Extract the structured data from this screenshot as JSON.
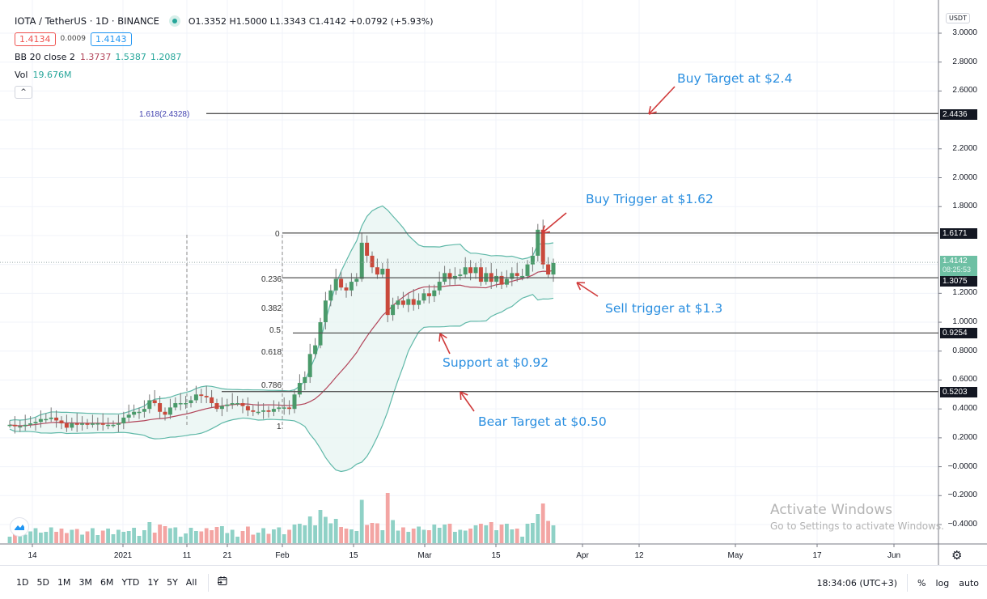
{
  "header": {
    "symbol_title": "IOTA / TetherUS · 1D · BINANCE",
    "ohlc": "O1.3352  H1.5000  L1.3343  C1.4142  +0.0792 (+5.93%)",
    "bid": "1.4134",
    "spread": "0.0009",
    "ask": "1.4143",
    "bb_label": "BB 20 close 2",
    "bb_basis": "1.3737",
    "bb_upper": "1.5387",
    "bb_lower": "1.2087",
    "vol_label": "Vol",
    "vol_value": "19.676M",
    "collapse_icon": "^"
  },
  "price_axis": {
    "currency": "USDT",
    "ticks": [
      "3.0000",
      "2.8000",
      "2.6000",
      "2.2000",
      "2.0000",
      "1.8000",
      "1.2000",
      "1.0000",
      "0.8000",
      "0.6000",
      "0.4000",
      "0.2000",
      "−0.0000",
      "−0.2000",
      "−0.4000"
    ],
    "tags": [
      {
        "label": "2.4436",
        "value": 2.4436
      },
      {
        "label": "1.6171",
        "value": 1.6171
      },
      {
        "label": "1.3075",
        "value": 1.3075
      },
      {
        "label": "0.9254",
        "value": 0.9254
      },
      {
        "label": "0.5203",
        "value": 0.5203
      }
    ],
    "last_price": "1.4142",
    "countdown": "08:25:53"
  },
  "time_axis": {
    "ticks": [
      "14",
      "2021",
      "11",
      "21",
      "Feb",
      "15",
      "Mar",
      "15",
      "Apr",
      "12",
      "May",
      "17",
      "Jun"
    ]
  },
  "fib_levels": [
    {
      "label": "1.618(2.4328)"
    },
    {
      "label": "0"
    },
    {
      "label": "0.236"
    },
    {
      "label": "0.382"
    },
    {
      "label": "0.5"
    },
    {
      "label": "0.618"
    },
    {
      "label": "0.786"
    },
    {
      "label": "1"
    }
  ],
  "annotations": {
    "buy_target": "Buy Target at $2.4",
    "buy_trigger": "Buy Trigger at $1.62",
    "sell_trigger": "Sell trigger at $1.3",
    "support": "Support at $0.92",
    "bear_target": "Bear Target at $0.50"
  },
  "watermark": {
    "line1": "Activate Windows",
    "line2": "Go to Settings to activate Windows."
  },
  "bottom_bar": {
    "ranges": [
      "1D",
      "5D",
      "1M",
      "3M",
      "6M",
      "YTD",
      "1Y",
      "5Y",
      "All"
    ],
    "clock": "18:34:06 (UTC+3)",
    "percent": "%",
    "log": "log",
    "auto": "auto"
  },
  "colors": {
    "up": "#26a69a",
    "down": "#ef5350",
    "bb_band": "#5fb8a8",
    "bb_basis": "#b2455a",
    "annotation": "#2b8fe0",
    "arrow": "#d03a3a"
  },
  "chart_data": {
    "type": "candlestick",
    "title": "IOTA / TetherUS · 1D · BINANCE",
    "xlabel": "",
    "ylabel": "USDT",
    "ylim": [
      -0.5,
      3.05
    ],
    "grid": true,
    "x_ticks": [
      "14",
      "2021",
      "11",
      "21",
      "Feb",
      "15",
      "Mar",
      "15",
      "Apr",
      "12",
      "May",
      "17",
      "Jun"
    ],
    "y_ticks": [
      3.0,
      2.8,
      2.6,
      2.4,
      2.2,
      2.0,
      1.8,
      1.6,
      1.4,
      1.2,
      1.0,
      0.8,
      0.6,
      0.4,
      0.2,
      0.0,
      -0.2,
      -0.4
    ],
    "last": {
      "open": 1.3352,
      "high": 1.5,
      "low": 1.3343,
      "close": 1.4142,
      "change": 0.0792,
      "change_pct": 5.93
    },
    "indicators": {
      "bollinger": {
        "length": 20,
        "source": "close",
        "mult": 2,
        "basis": 1.3737,
        "upper": 1.5387,
        "lower": 1.2087
      },
      "volume": {
        "last": "19.676M"
      }
    },
    "horizontal_levels": [
      {
        "name": "Fib 1.618 / Buy Target",
        "value": 2.4436
      },
      {
        "name": "Fib 0 / Buy Trigger",
        "value": 1.6171
      },
      {
        "name": "Fib 0.236 / Sell trigger",
        "value": 1.3075
      },
      {
        "name": "Fib 0.5 / Support",
        "value": 0.9254
      },
      {
        "name": "Fib 0.786 / Bear Target",
        "value": 0.5203
      }
    ],
    "close_series_approx": [
      0.29,
      0.28,
      0.28,
      0.29,
      0.3,
      0.31,
      0.33,
      0.33,
      0.34,
      0.32,
      0.3,
      0.27,
      0.3,
      0.29,
      0.3,
      0.29,
      0.3,
      0.3,
      0.29,
      0.29,
      0.29,
      0.3,
      0.34,
      0.36,
      0.38,
      0.38,
      0.4,
      0.46,
      0.44,
      0.38,
      0.36,
      0.41,
      0.44,
      0.44,
      0.44,
      0.46,
      0.5,
      0.49,
      0.48,
      0.44,
      0.4,
      0.42,
      0.43,
      0.44,
      0.44,
      0.42,
      0.39,
      0.38,
      0.38,
      0.39,
      0.38,
      0.4,
      0.41,
      0.41,
      0.4,
      0.5,
      0.58,
      0.62,
      0.78,
      0.84,
      1.0,
      1.15,
      1.22,
      1.3,
      1.24,
      1.22,
      1.28,
      1.3,
      1.55,
      1.46,
      1.38,
      1.33,
      1.37,
      1.05,
      1.12,
      1.15,
      1.12,
      1.16,
      1.12,
      1.15,
      1.2,
      1.18,
      1.22,
      1.28,
      1.34,
      1.3,
      1.32,
      1.33,
      1.38,
      1.34,
      1.38,
      1.28,
      1.34,
      1.28,
      1.32,
      1.26,
      1.3,
      1.34,
      1.32,
      1.32,
      1.4,
      1.46,
      1.64,
      1.4,
      1.33,
      1.41
    ]
  }
}
